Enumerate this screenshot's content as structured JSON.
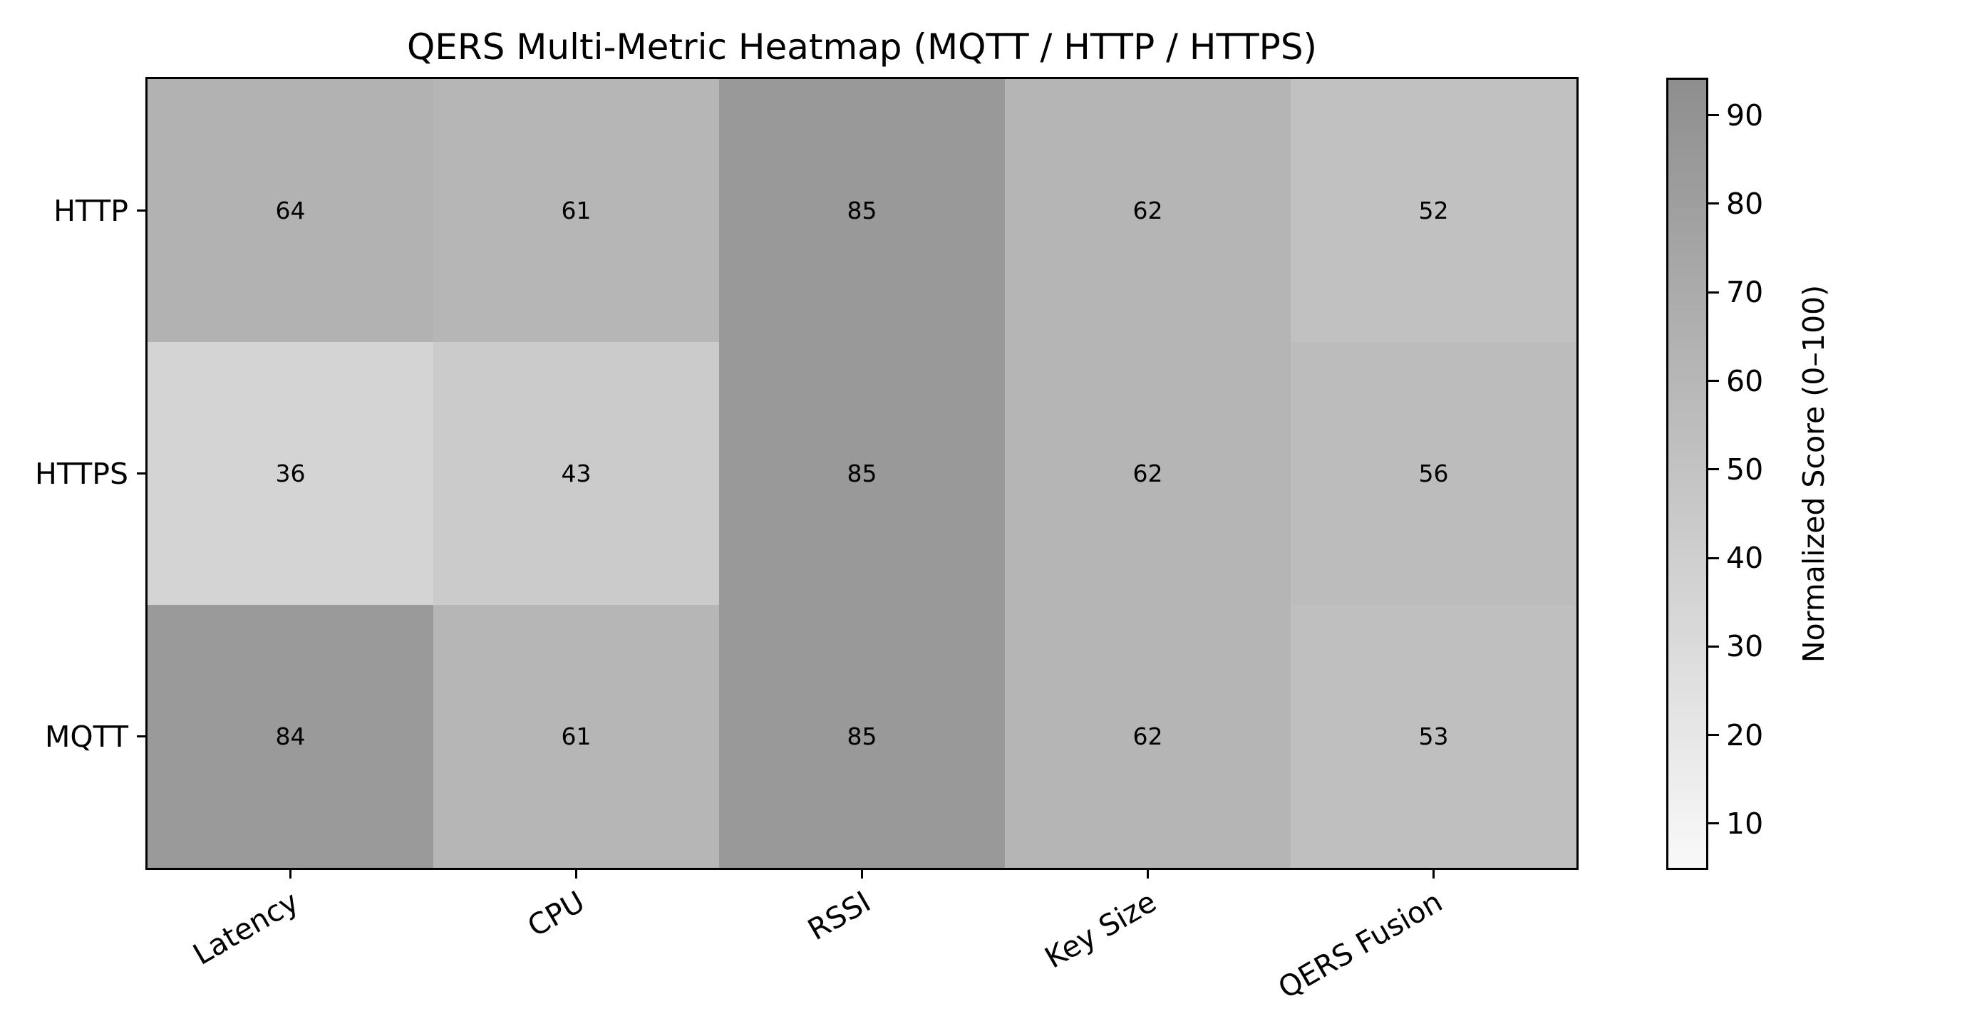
{
  "chart_data": {
    "type": "heatmap",
    "title": "QERS Multi-Metric Heatmap (MQTT / HTTP / HTTPS)",
    "rows": [
      "HTTP",
      "HTTPS",
      "MQTT"
    ],
    "columns": [
      "Latency",
      "CPU",
      "RSSI",
      "Key Size",
      "QERS Fusion"
    ],
    "values": [
      [
        64,
        61,
        85,
        62,
        52
      ],
      [
        36,
        43,
        85,
        62,
        56
      ],
      [
        84,
        61,
        85,
        62,
        53
      ]
    ],
    "cell_colors": [
      [
        "#b2b2b2",
        "#b6b6b6",
        "#999999",
        "#b5b5b5",
        "#c1c1c1"
      ],
      [
        "#d4d4d4",
        "#cbcbcb",
        "#999999",
        "#b5b5b5",
        "#bcbcbc"
      ],
      [
        "#9a9a9a",
        "#b6b6b6",
        "#999999",
        "#b5b5b5",
        "#bfbfbf"
      ]
    ],
    "x_tick_rotation_deg": 30,
    "colorbar": {
      "label": "Normalized Score (0–100)",
      "ticks": [
        10,
        20,
        30,
        40,
        50,
        60,
        70,
        80,
        90
      ],
      "value_range": [
        5,
        94
      ],
      "bottom_color": "#f9f9f9",
      "top_color": "#8e8e8e"
    },
    "text_color": "#000000",
    "background_color": "#ffffff"
  }
}
